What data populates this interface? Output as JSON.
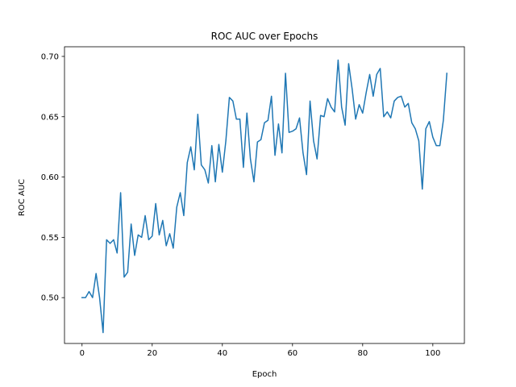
{
  "chart_data": {
    "type": "line",
    "title": "ROC AUC over Epochs",
    "xlabel": "Epoch",
    "ylabel": "ROC AUC",
    "xlim": [
      -5,
      109
    ],
    "ylim": [
      0.462,
      0.708
    ],
    "xticks": [
      0,
      20,
      40,
      60,
      80,
      100
    ],
    "yticks": [
      0.5,
      0.55,
      0.6,
      0.65,
      0.7
    ],
    "xtick_labels": [
      "0",
      "20",
      "40",
      "60",
      "80",
      "100"
    ],
    "ytick_labels": [
      "0.50",
      "0.55",
      "0.60",
      "0.65",
      "0.70"
    ],
    "grid": false,
    "line_color": "#1f77b4",
    "series": [
      {
        "x": [
          0,
          1,
          2,
          3,
          4,
          5,
          6,
          7,
          8,
          9,
          10,
          11,
          12,
          13,
          14,
          15,
          16,
          17,
          18,
          19,
          20,
          21,
          22,
          23,
          24,
          25,
          26,
          27,
          28,
          29,
          30,
          31,
          32,
          33,
          34,
          35,
          36,
          37,
          38,
          39,
          40,
          41,
          42,
          43,
          44,
          45,
          46,
          47,
          48,
          49,
          50,
          51,
          52,
          53,
          54,
          55,
          56,
          57,
          58,
          59,
          60,
          61,
          62,
          63,
          64,
          65,
          66,
          67,
          68,
          69,
          70,
          71,
          72,
          73,
          74,
          75,
          76,
          77,
          78,
          79,
          80,
          81,
          82,
          83,
          84,
          85,
          86,
          87,
          88,
          89,
          90,
          91,
          92,
          93,
          94,
          95,
          96,
          97,
          98,
          99,
          100,
          101,
          102,
          103,
          104
        ],
        "values": [
          0.5,
          0.5,
          0.505,
          0.5,
          0.52,
          0.5,
          0.471,
          0.548,
          0.545,
          0.548,
          0.537,
          0.587,
          0.517,
          0.521,
          0.561,
          0.535,
          0.552,
          0.55,
          0.568,
          0.548,
          0.551,
          0.578,
          0.552,
          0.564,
          0.543,
          0.553,
          0.541,
          0.575,
          0.587,
          0.568,
          0.612,
          0.625,
          0.606,
          0.652,
          0.61,
          0.606,
          0.595,
          0.626,
          0.596,
          0.627,
          0.604,
          0.63,
          0.666,
          0.663,
          0.648,
          0.648,
          0.608,
          0.653,
          0.615,
          0.596,
          0.629,
          0.631,
          0.645,
          0.647,
          0.667,
          0.618,
          0.644,
          0.62,
          0.686,
          0.637,
          0.638,
          0.64,
          0.649,
          0.62,
          0.602,
          0.663,
          0.63,
          0.615,
          0.651,
          0.65,
          0.665,
          0.658,
          0.654,
          0.697,
          0.658,
          0.643,
          0.694,
          0.673,
          0.648,
          0.66,
          0.653,
          0.67,
          0.685,
          0.667,
          0.685,
          0.69,
          0.65,
          0.654,
          0.649,
          0.663,
          0.666,
          0.667,
          0.658,
          0.661,
          0.645,
          0.64,
          0.63,
          0.59,
          0.64,
          0.646,
          0.633,
          0.626,
          0.626,
          0.647,
          0.686
        ]
      }
    ]
  }
}
